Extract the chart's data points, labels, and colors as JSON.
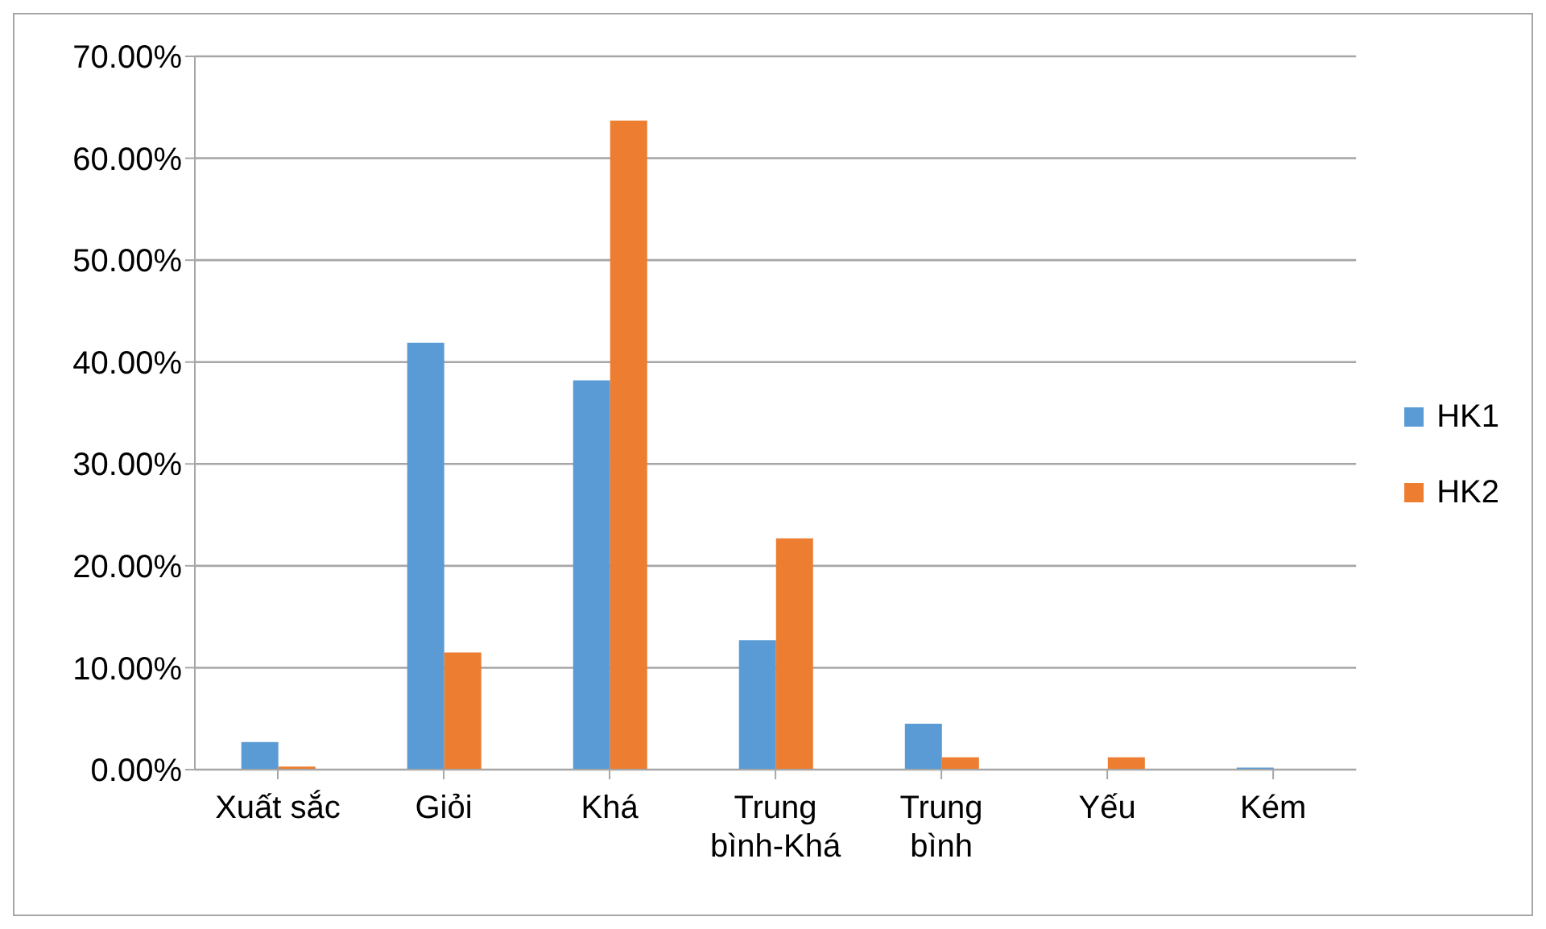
{
  "chart_data": {
    "type": "bar",
    "categories": [
      "Xuất sắc",
      "Giỏi",
      "Khá",
      "Trung bình-Khá",
      "Trung bình",
      "Yếu",
      "Kém"
    ],
    "series": [
      {
        "name": "HK1",
        "color": "#5b9bd5",
        "values": [
          2.7,
          41.9,
          38.2,
          12.7,
          4.5,
          0,
          0.2
        ]
      },
      {
        "name": "HK2",
        "color": "#ed7d31",
        "values": [
          0.3,
          11.5,
          63.7,
          22.7,
          1.2,
          1.2,
          0
        ]
      }
    ],
    "ylim": [
      0,
      70
    ],
    "yticks": [
      {
        "value": 0,
        "label": "0.00%"
      },
      {
        "value": 10,
        "label": "10.00%"
      },
      {
        "value": 20,
        "label": "20.00%"
      },
      {
        "value": 30,
        "label": "30.00%"
      },
      {
        "value": 40,
        "label": "40.00%"
      },
      {
        "value": 50,
        "label": "50.00%"
      },
      {
        "value": 60,
        "label": "60.00%"
      },
      {
        "value": 70,
        "label": "70.00%"
      }
    ],
    "grid": "y",
    "legend": "right"
  }
}
